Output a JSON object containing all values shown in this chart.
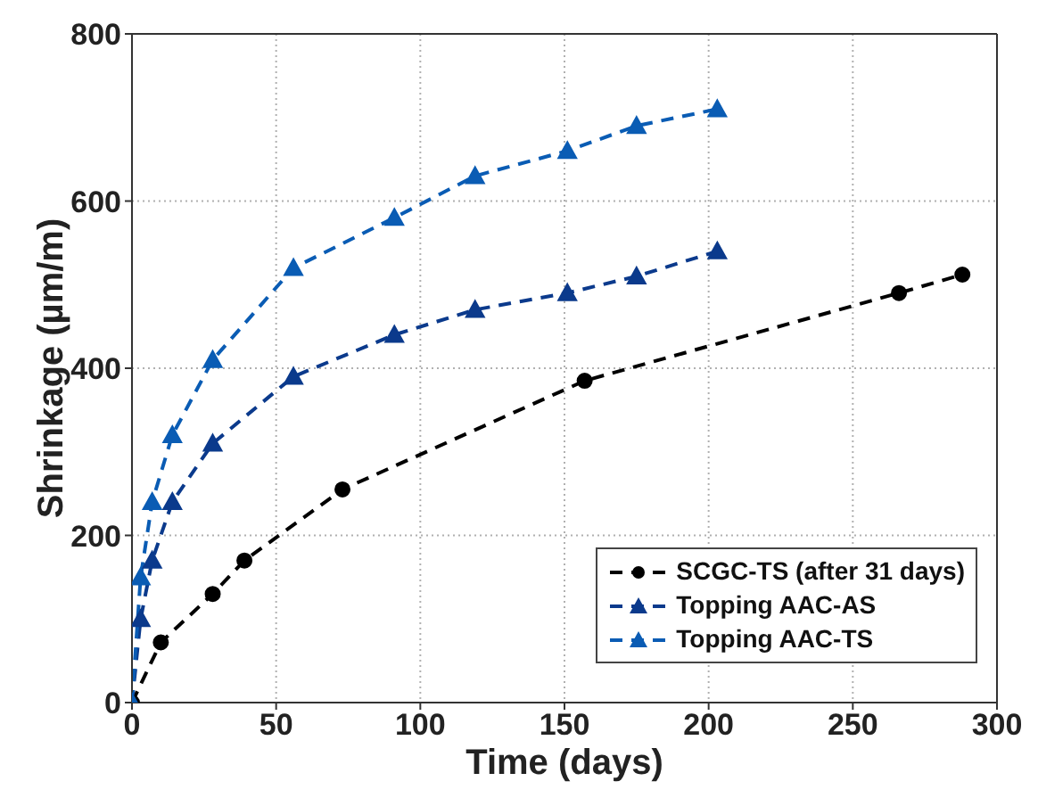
{
  "chart_data": {
    "type": "line",
    "xlabel": "Time (days)",
    "ylabel": "Shrinkage (µm/m)",
    "xlim": [
      0,
      300
    ],
    "xticks": [
      0,
      50,
      100,
      150,
      200,
      250,
      300
    ],
    "ylim": [
      0,
      800
    ],
    "yticks": [
      0,
      200,
      400,
      600,
      800
    ],
    "grid": true,
    "legend": "bottom right",
    "line_style": "dashed",
    "series": [
      {
        "name": "SCGC-TS (after 31 days)",
        "color": "#000000",
        "marker": "circle",
        "x": [
          0,
          10,
          28,
          39,
          73,
          157,
          266,
          288
        ],
        "values": [
          0,
          72,
          130,
          170,
          255,
          385,
          490,
          512
        ]
      },
      {
        "name": "Topping AAC-AS",
        "color": "#0b3a8c",
        "marker": "triangle",
        "x": [
          0,
          3,
          7,
          14,
          28,
          56,
          91,
          119,
          151,
          175,
          203
        ],
        "values": [
          0,
          100,
          170,
          240,
          310,
          390,
          440,
          470,
          490,
          510,
          540
        ]
      },
      {
        "name": "Topping AAC-TS",
        "color": "#0a5cb4",
        "marker": "triangle",
        "x": [
          0,
          3,
          7,
          14,
          28,
          56,
          91,
          119,
          151,
          175,
          203
        ],
        "values": [
          0,
          150,
          240,
          320,
          410,
          520,
          580,
          630,
          660,
          690,
          710
        ]
      }
    ]
  }
}
